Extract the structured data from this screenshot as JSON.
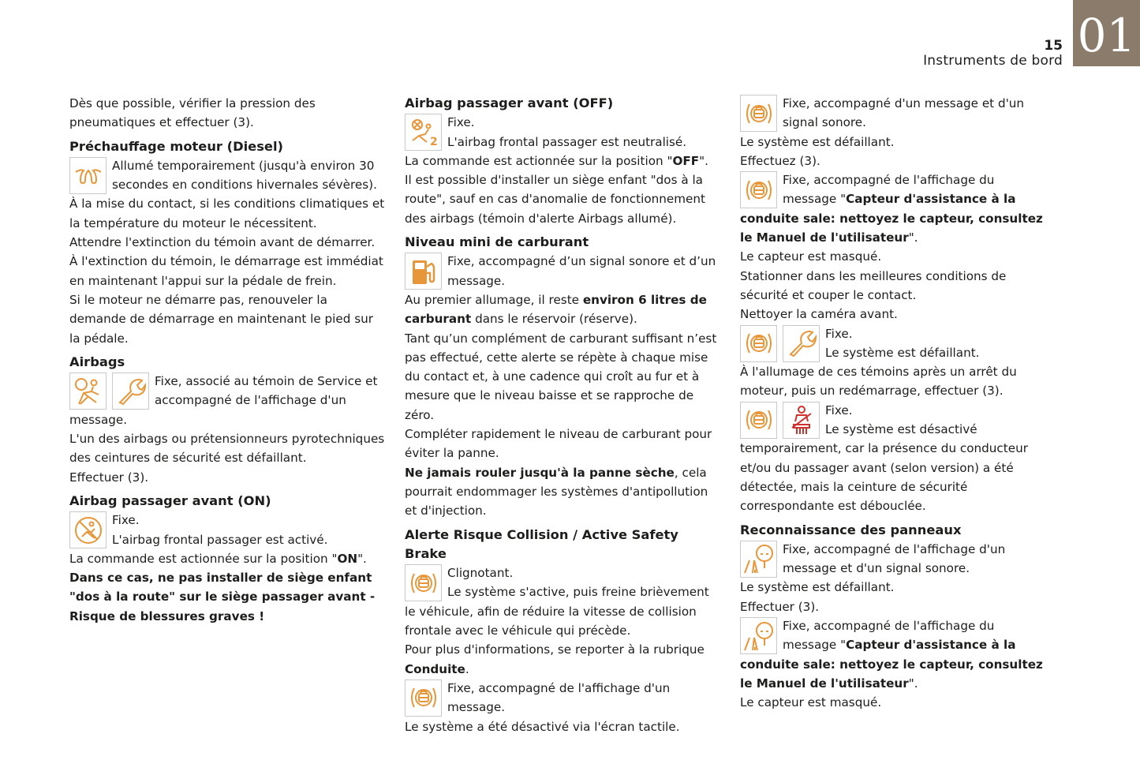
{
  "header": {
    "page_number": "15",
    "section_title": "Instruments de bord",
    "chapter_tab": "01"
  },
  "colors": {
    "tab": "#8b7b6b",
    "icon_orange": "#e8963a",
    "icon_red": "#d0312d",
    "text": "#1d1d1b"
  },
  "columns": [
    {
      "blocks": [
        {
          "type": "p",
          "text": [
            {
              "t": "Dès que possible, vérifier la pression des pneumatiques et effectuer (3)."
            }
          ]
        },
        {
          "type": "h",
          "text": [
            {
              "t": "Préchauffage moteur (Diesel)"
            }
          ]
        },
        {
          "type": "item",
          "icons": [
            "glow-plug-icon"
          ],
          "lines": [
            [
              {
                "t": "Allumé temporairement (jusqu'à environ 30 secondes en conditions hivernales sévères)."
              }
            ]
          ]
        },
        {
          "type": "p",
          "text": [
            {
              "t": "À la mise du contact, si les conditions climatiques et la température du moteur le nécessitent."
            }
          ]
        },
        {
          "type": "p",
          "text": [
            {
              "t": "Attendre l'extinction du témoin avant de démarrer."
            }
          ]
        },
        {
          "type": "p",
          "text": [
            {
              "t": "À l'extinction du témoin, le démarrage est immédiat en maintenant l'appui sur la pédale de frein."
            }
          ]
        },
        {
          "type": "p",
          "text": [
            {
              "t": "Si le moteur ne démarre pas, renouveler la demande de démarrage en maintenant le pied sur la pédale."
            }
          ]
        },
        {
          "type": "h",
          "text": [
            {
              "t": "Airbags"
            }
          ]
        },
        {
          "type": "item",
          "icons": [
            "airbag-icon",
            "wrench-icon"
          ],
          "lines": [
            [
              {
                "t": "Fixe, associé au témoin de Service et accompagné de l'affichage d'un message."
              }
            ]
          ]
        },
        {
          "type": "p",
          "text": [
            {
              "t": "L'un des airbags ou prétensionneurs pyrotechniques des ceintures de sécurité est défaillant."
            }
          ]
        },
        {
          "type": "p",
          "text": [
            {
              "t": "Effectuer (3)."
            }
          ]
        },
        {
          "type": "h",
          "text": [
            {
              "t": "Airbag passager avant (ON)"
            }
          ]
        },
        {
          "type": "item",
          "icons": [
            "airbag-on-icon"
          ],
          "lines": [
            [
              {
                "t": "Fixe."
              }
            ],
            [
              {
                "t": "L'airbag frontal passager est activé."
              }
            ]
          ]
        },
        {
          "type": "p",
          "text": [
            {
              "t": "La commande est actionnée sur la position \""
            },
            {
              "t": "ON",
              "b": true
            },
            {
              "t": "\"."
            }
          ]
        },
        {
          "type": "p",
          "text": [
            {
              "t": "Dans ce cas, ne pas installer de siège enfant \"dos à la route\" sur le siège passager avant - Risque de blessures graves !",
              "b": true
            }
          ]
        }
      ]
    },
    {
      "blocks": [
        {
          "type": "h0",
          "text": [
            {
              "t": "Airbag passager avant (OFF)"
            }
          ]
        },
        {
          "type": "item",
          "icons": [
            "airbag-off-icon"
          ],
          "lines": [
            [
              {
                "t": "Fixe."
              }
            ],
            [
              {
                "t": "L'airbag frontal passager est neutralisé."
              }
            ]
          ]
        },
        {
          "type": "p",
          "text": [
            {
              "t": "La commande est actionnée sur la position \""
            },
            {
              "t": "OFF",
              "b": true
            },
            {
              "t": "\"."
            }
          ]
        },
        {
          "type": "p",
          "text": [
            {
              "t": "Il est possible d'installer un siège enfant \"dos à la route\", sauf en cas d'anomalie de fonctionnement des airbags (témoin d'alerte Airbags allumé)."
            }
          ]
        },
        {
          "type": "h",
          "text": [
            {
              "t": "Niveau mini de carburant"
            }
          ]
        },
        {
          "type": "item",
          "icons": [
            "fuel-pump-icon"
          ],
          "lines": [
            [
              {
                "t": "Fixe, accompagné d’un signal sonore et d’un message."
              }
            ]
          ]
        },
        {
          "type": "p",
          "text": [
            {
              "t": "Au premier allumage, il reste "
            },
            {
              "t": "environ 6 litres de carburant",
              "b": true
            },
            {
              "t": " dans le réservoir (réserve)."
            }
          ]
        },
        {
          "type": "p",
          "text": [
            {
              "t": "Tant qu’un complément de carburant suffisant n’est pas effectué, cette alerte se répète à chaque mise du contact et, à une cadence qui croît au fur et à mesure que le niveau baisse et se rapproche de zéro."
            }
          ]
        },
        {
          "type": "p",
          "text": [
            {
              "t": "Compléter rapidement le niveau de carburant pour éviter la panne."
            }
          ]
        },
        {
          "type": "p",
          "text": [
            {
              "t": "Ne jamais rouler jusqu'à la panne sèche",
              "b": true
            },
            {
              "t": ", cela pourrait endommager les systèmes d'antipollution et d'injection."
            }
          ]
        },
        {
          "type": "h",
          "text": [
            {
              "t": "Alerte Risque Collision / Active Safety Brake"
            }
          ]
        },
        {
          "type": "item",
          "icons": [
            "collision-alert-icon"
          ],
          "lines": [
            [
              {
                "t": "Clignotant."
              }
            ],
            [
              {
                "t": "Le système s'active, puis freine brièvement le véhicule, afin de réduire la vitesse de collision frontale avec le véhicule qui précède."
              }
            ]
          ]
        },
        {
          "type": "p",
          "text": [
            {
              "t": "Pour plus d'informations, se reporter à la rubrique "
            },
            {
              "t": "Conduite",
              "b": true
            },
            {
              "t": "."
            }
          ]
        },
        {
          "type": "item",
          "icons": [
            "collision-alert-icon"
          ],
          "lines": [
            [
              {
                "t": "Fixe, accompagné de l'affichage d'un message."
              }
            ]
          ]
        },
        {
          "type": "p",
          "text": [
            {
              "t": "Le système a été désactivé via l'écran tactile."
            }
          ]
        }
      ]
    },
    {
      "blocks": [
        {
          "type": "item",
          "icons": [
            "collision-alert-icon"
          ],
          "lines": [
            [
              {
                "t": "Fixe, accompagné d'un message et d'un signal sonore."
              }
            ]
          ]
        },
        {
          "type": "p",
          "text": [
            {
              "t": "Le système est défaillant."
            }
          ]
        },
        {
          "type": "p",
          "text": [
            {
              "t": "Effectuez (3)."
            }
          ]
        },
        {
          "type": "item",
          "icons": [
            "collision-alert-icon"
          ],
          "lines": [
            [
              {
                "t": "Fixe, accompagné de l'affichage du message \""
              },
              {
                "t": "Capteur d'assistance à la conduite sale: nettoyez le capteur, consultez le Manuel de l'utilisateur",
                "b": true
              },
              {
                "t": "\"."
              }
            ]
          ]
        },
        {
          "type": "p",
          "text": [
            {
              "t": "Le capteur est masqué."
            }
          ]
        },
        {
          "type": "p",
          "text": [
            {
              "t": "Stationner dans les meilleures conditions de sécurité et couper le contact."
            }
          ]
        },
        {
          "type": "p",
          "text": [
            {
              "t": "Nettoyer la caméra avant."
            }
          ]
        },
        {
          "type": "item",
          "icons": [
            "collision-alert-icon",
            "wrench-icon"
          ],
          "lines": [
            [
              {
                "t": "Fixe."
              }
            ],
            [
              {
                "t": "Le système est défaillant."
              }
            ]
          ]
        },
        {
          "type": "p",
          "text": [
            {
              "t": "À l'allumage de ces témoins après un arrêt du moteur, puis un redémarrage, effectuer (3)."
            }
          ]
        },
        {
          "type": "item",
          "icons": [
            "collision-alert-icon",
            "seatbelt-icon"
          ],
          "lines": [
            [
              {
                "t": "Fixe."
              }
            ],
            [
              {
                "t": "Le système est désactivé temporairement, car la présence du conducteur et/ou du passager avant (selon version) a été détectée, mais la ceinture de sécurité correspondante est débouclée."
              }
            ]
          ]
        },
        {
          "type": "h",
          "text": [
            {
              "t": "Reconnaissance des panneaux"
            }
          ]
        },
        {
          "type": "item",
          "icons": [
            "sign-recognition-icon"
          ],
          "lines": [
            [
              {
                "t": "Fixe, accompagné de l'affichage d'un message et d'un signal sonore."
              }
            ]
          ]
        },
        {
          "type": "p",
          "text": [
            {
              "t": "Le système est défaillant."
            }
          ]
        },
        {
          "type": "p",
          "text": [
            {
              "t": "Effectuer (3)."
            }
          ]
        },
        {
          "type": "item",
          "icons": [
            "sign-recognition-icon"
          ],
          "lines": [
            [
              {
                "t": "Fixe, accompagné de l'affichage du message \""
              },
              {
                "t": "Capteur d'assistance à la conduite sale: nettoyez le capteur, consultez le Manuel de l'utilisateur",
                "b": true
              },
              {
                "t": "\"."
              }
            ]
          ]
        },
        {
          "type": "p",
          "text": [
            {
              "t": "Le capteur est masqué."
            }
          ]
        }
      ]
    }
  ]
}
